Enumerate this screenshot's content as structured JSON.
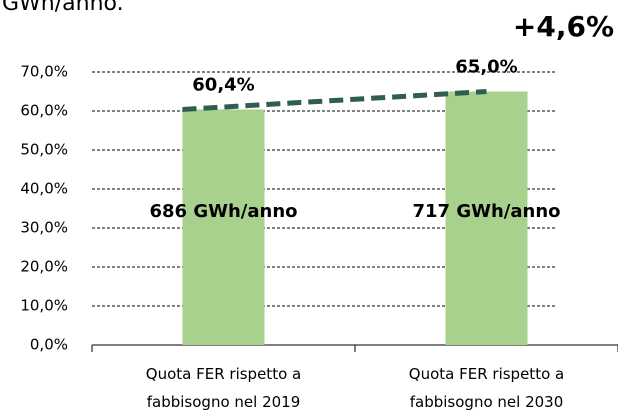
{
  "chart_data": {
    "type": "bar",
    "title": "GWh/anno.",
    "annotation": "+4,6%",
    "categories": [
      "Quota FER rispetto a fabbisogno nel 2019",
      "Quota FER rispetto a fabbisogno nel 2030"
    ],
    "values": [
      60.4,
      65.0
    ],
    "value_labels": [
      "60,4%",
      "65,0%"
    ],
    "bar_labels": [
      "686 GWh/anno",
      "717 GWh/anno"
    ],
    "color": "#a9d18e",
    "line_color": "#2f5d4f",
    "ylim": [
      0,
      70
    ],
    "yticks": [
      {
        "value": 0,
        "label": "0,0%"
      },
      {
        "value": 10,
        "label": "10,0%"
      },
      {
        "value": 20,
        "label": "20,0%"
      },
      {
        "value": 30,
        "label": "30,0%"
      },
      {
        "value": 40,
        "label": "40,0%"
      },
      {
        "value": 50,
        "label": "50,0%"
      },
      {
        "value": 60,
        "label": "60,0%"
      },
      {
        "value": 70,
        "label": "70,0%"
      }
    ],
    "grid": true
  }
}
